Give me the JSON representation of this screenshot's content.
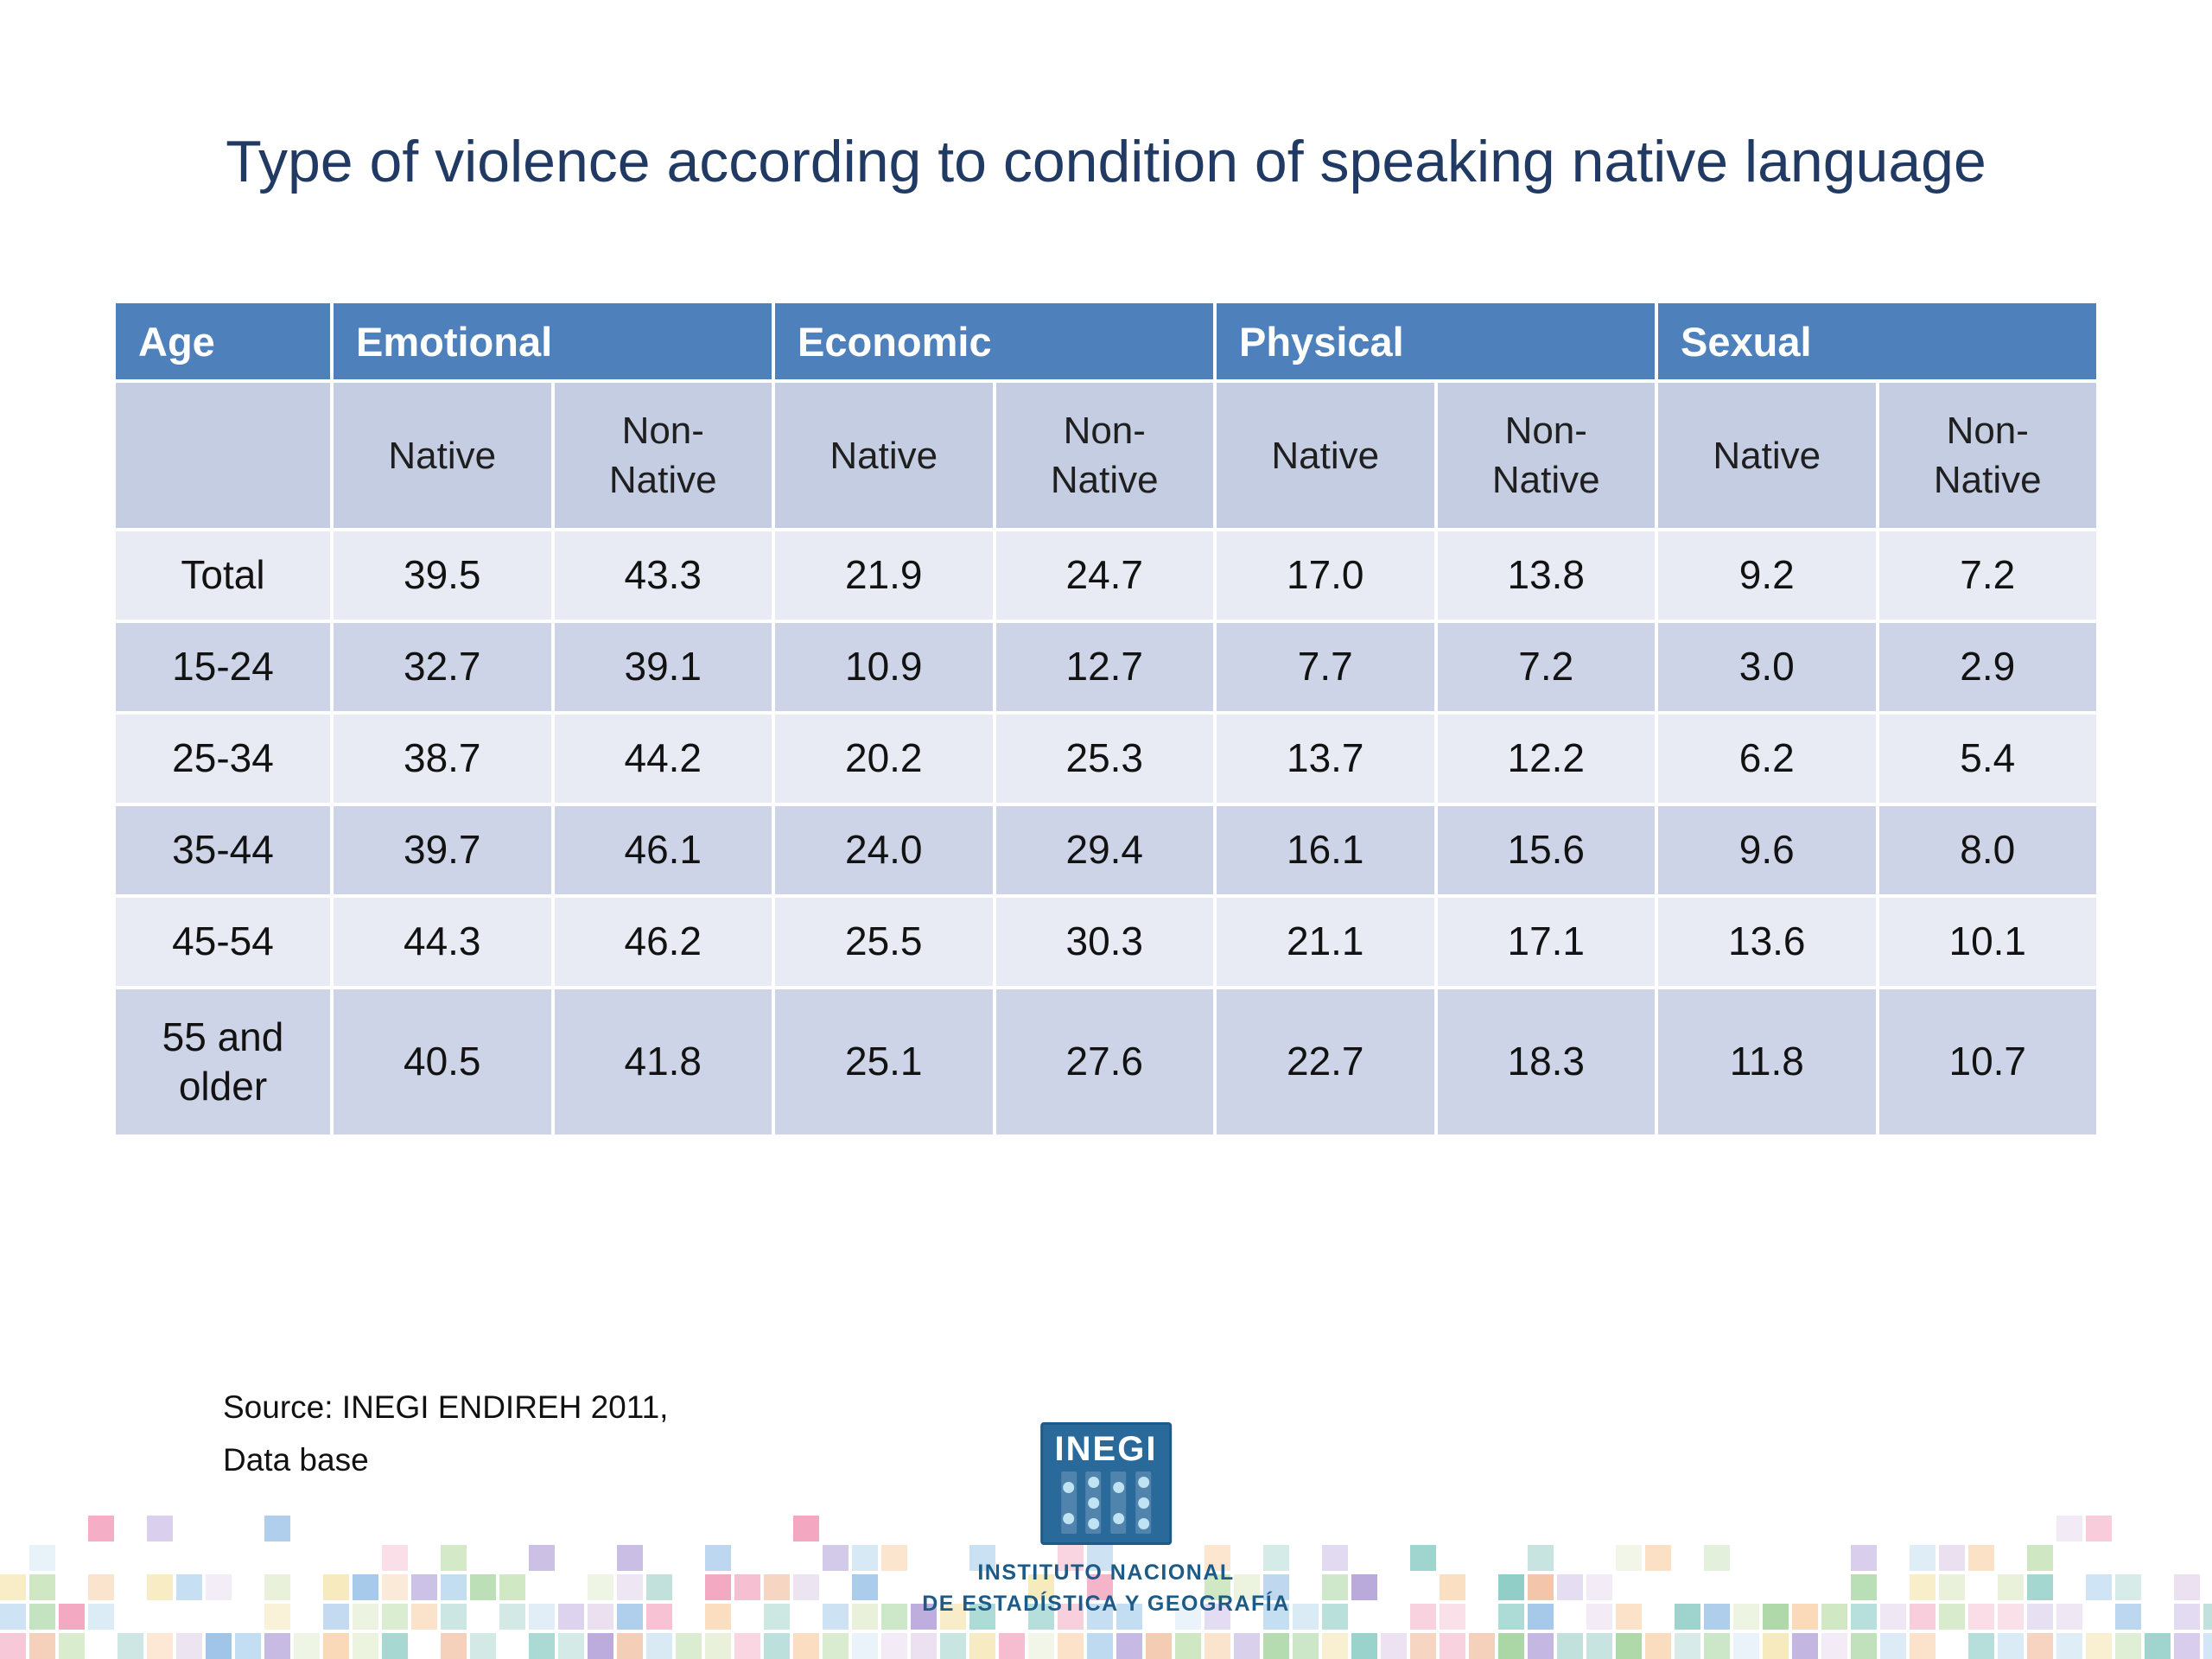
{
  "slide": {
    "source": {
      "line1": "Source: INEGI ENDIREH 2011,",
      "line2": "Data base"
    },
    "logo": {
      "name": "INEGI",
      "caption_line1": "INSTITUTO NACIONAL",
      "caption_line2": "DE ESTADÍSTICA Y GEOGRAFÍA"
    }
  },
  "chart_data": {
    "type": "table",
    "title": "Type of violence according to condition of speaking native language",
    "columns": {
      "age_header": "Age",
      "groups": [
        "Emotional",
        "Economic",
        "Physical",
        "Sexual"
      ],
      "subcolumns": [
        "Native",
        "Non-Native"
      ]
    },
    "rows": [
      {
        "age": "Total",
        "values": [
          "39.5",
          "43.3",
          "21.9",
          "24.7",
          "17.0",
          "13.8",
          "9.2",
          "7.2"
        ]
      },
      {
        "age": "15-24",
        "values": [
          "32.7",
          "39.1",
          "10.9",
          "12.7",
          "7.7",
          "7.2",
          "3.0",
          "2.9"
        ]
      },
      {
        "age": "25-34",
        "values": [
          "38.7",
          "44.2",
          "20.2",
          "25.3",
          "13.7",
          "12.2",
          "6.2",
          "5.4"
        ]
      },
      {
        "age": "35-44",
        "values": [
          "39.7",
          "46.1",
          "24.0",
          "29.4",
          "16.1",
          "15.6",
          "9.6",
          "8.0"
        ]
      },
      {
        "age": "45-54",
        "values": [
          "44.3",
          "46.2",
          "25.5",
          "30.3",
          "21.1",
          "17.1",
          "13.6",
          "10.1"
        ]
      },
      {
        "age": "55 and older",
        "values": [
          "40.5",
          "41.8",
          "25.1",
          "27.6",
          "22.7",
          "18.3",
          "11.8",
          "10.7"
        ]
      }
    ],
    "source": "Source: INEGI ENDIREH 2011, Data base",
    "layout": {
      "banded_rows": true,
      "header_position": "top",
      "grid": "white-lines"
    }
  },
  "colors": {
    "title_text": "#203A64",
    "header_bg": "#4E80BC",
    "header_text": "#FFFFFF",
    "subheader_bg": "#C5CDE2",
    "row_band_light": "#E9EBF4",
    "row_band_dark": "#CDD4E7",
    "cell_text": "#121212",
    "inegi_blue": "#2A6A9B",
    "caption_blue": "#1C5A87",
    "mosaic_palette": [
      "#F7C8D8",
      "#F3A6C0",
      "#FAD9B8",
      "#F6E8B8",
      "#CFE7C2",
      "#A8D5A2",
      "#BFE0DC",
      "#8FCDC6",
      "#BCD9F0",
      "#9EC4E8",
      "#D8CDEC",
      "#B9A9DC",
      "#F2C4A8",
      "#EADFF0",
      "#D9EAF5",
      "#E8F0D8"
    ]
  }
}
